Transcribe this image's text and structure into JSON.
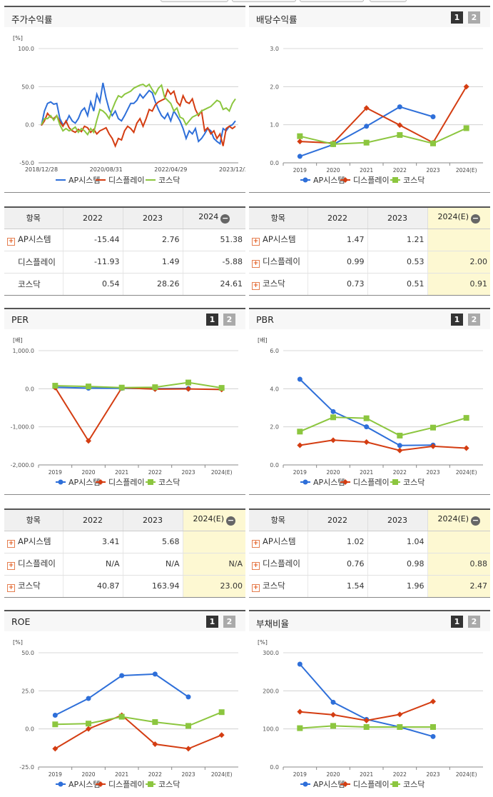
{
  "colors": {
    "ap": "#2e6fd9",
    "display": "#d43d12",
    "kosdaq": "#8cc63f"
  },
  "series_names": [
    "AP시스템",
    "디스플레이",
    "코스닥"
  ],
  "panels": {
    "stock_return": {
      "title": "주가수익률"
    },
    "dividend_yield": {
      "title": "배당수익률",
      "pages": [
        "1",
        "2"
      ]
    },
    "per": {
      "title": "PER",
      "pages": [
        "1",
        "2"
      ]
    },
    "pbr": {
      "title": "PBR",
      "pages": [
        "1",
        "2"
      ]
    },
    "roe": {
      "title": "ROE",
      "pages": [
        "1",
        "2"
      ]
    },
    "debt_ratio": {
      "title": "부채비율",
      "pages": [
        "1",
        "2"
      ]
    }
  },
  "tables": {
    "stock_return": {
      "headers": [
        "항목",
        "2022",
        "2023",
        "2024"
      ],
      "rows": [
        {
          "name": "AP시스템",
          "plus": true,
          "values": [
            "-15.44",
            "2.76",
            "51.38"
          ]
        },
        {
          "name": "디스플레이",
          "plus": false,
          "values": [
            "-11.93",
            "1.49",
            "-5.88"
          ]
        },
        {
          "name": "코스닥",
          "plus": false,
          "values": [
            "0.54",
            "28.26",
            "24.61"
          ]
        }
      ]
    },
    "dividend_yield": {
      "headers": [
        "항목",
        "2022",
        "2023",
        "2024(E)"
      ],
      "rows": [
        {
          "name": "AP시스템",
          "plus": true,
          "values": [
            "1.47",
            "1.21",
            ""
          ]
        },
        {
          "name": "디스플레이",
          "plus": true,
          "values": [
            "0.99",
            "0.53",
            "2.00"
          ]
        },
        {
          "name": "코스닥",
          "plus": true,
          "values": [
            "0.73",
            "0.51",
            "0.91"
          ]
        }
      ]
    },
    "per": {
      "headers": [
        "항목",
        "2022",
        "2023",
        "2024(E)"
      ],
      "rows": [
        {
          "name": "AP시스템",
          "plus": true,
          "values": [
            "3.41",
            "5.68",
            ""
          ]
        },
        {
          "name": "디스플레이",
          "plus": true,
          "values": [
            "N/A",
            "N/A",
            "N/A"
          ]
        },
        {
          "name": "코스닥",
          "plus": true,
          "values": [
            "40.87",
            "163.94",
            "23.00"
          ]
        }
      ]
    },
    "pbr": {
      "headers": [
        "항목",
        "2022",
        "2023",
        "2024(E)"
      ],
      "rows": [
        {
          "name": "AP시스템",
          "plus": true,
          "values": [
            "1.02",
            "1.04",
            ""
          ]
        },
        {
          "name": "디스플레이",
          "plus": true,
          "values": [
            "0.76",
            "0.98",
            "0.88"
          ]
        },
        {
          "name": "코스닥",
          "plus": true,
          "values": [
            "1.54",
            "1.96",
            "2.47"
          ]
        }
      ]
    }
  },
  "chart_data": [
    {
      "id": "stock_return",
      "type": "line",
      "unit": "[%]",
      "ylim": [
        -50,
        100
      ],
      "yticks": [
        "100.0",
        "50.0",
        "0.0",
        "-50.0"
      ],
      "xticks": [
        "2018/12/28",
        "2020/08/31",
        "2022/04/29",
        "2023/12/28"
      ],
      "series": [
        {
          "name": "AP시스템",
          "values": [
            -1,
            18,
            28,
            30,
            27,
            28,
            8,
            0,
            3,
            12,
            5,
            2,
            8,
            18,
            22,
            12,
            30,
            18,
            40,
            30,
            55,
            35,
            20,
            12,
            18,
            8,
            5,
            12,
            20,
            28,
            28,
            32,
            40,
            35,
            40,
            45,
            42,
            30,
            20,
            12,
            8,
            15,
            5,
            18,
            12,
            5,
            -5,
            -18,
            -8,
            -12,
            -5,
            -22,
            -18,
            -12,
            -5,
            -8,
            -18,
            -22,
            -25,
            -5,
            -8,
            -2,
            0,
            5
          ]
        },
        {
          "name": "디스플레이",
          "values": [
            -1,
            5,
            15,
            10,
            8,
            12,
            4,
            -2,
            5,
            -4,
            -8,
            -10,
            -6,
            -9,
            -2,
            -4,
            -10,
            -6,
            -12,
            -8,
            -6,
            -4,
            -12,
            -18,
            -28,
            -18,
            -20,
            -8,
            -2,
            -5,
            -10,
            2,
            8,
            -2,
            8,
            20,
            18,
            26,
            30,
            32,
            34,
            46,
            40,
            44,
            30,
            25,
            38,
            30,
            28,
            34,
            20,
            12,
            18,
            -8,
            -4,
            -12,
            -8,
            -18,
            -12,
            -28,
            -5,
            -2,
            -5,
            -2
          ]
        },
        {
          "name": "코스닥",
          "values": [
            0,
            8,
            8,
            12,
            6,
            12,
            0,
            -8,
            -5,
            -8,
            -6,
            -3,
            -10,
            -5,
            -8,
            -13,
            -5,
            -10,
            6,
            20,
            18,
            14,
            8,
            20,
            30,
            38,
            36,
            40,
            42,
            44,
            48,
            50,
            52,
            53,
            50,
            53,
            46,
            40,
            48,
            52,
            36,
            32,
            28,
            18,
            22,
            10,
            8,
            0,
            5,
            10,
            12,
            14,
            18,
            20,
            22,
            24,
            28,
            32,
            30,
            20,
            22,
            18,
            28,
            34
          ]
        }
      ]
    },
    {
      "id": "dividend_yield",
      "type": "line",
      "unit": "",
      "ylim": [
        0,
        3
      ],
      "yticks": [
        "3.0",
        "2.0",
        "1.0",
        "0.0"
      ],
      "categories": [
        "2019",
        "2020",
        "2021",
        "2022",
        "2023",
        "2024(E)"
      ],
      "series": [
        {
          "name": "AP시스템",
          "values": [
            0.17,
            0.48,
            0.96,
            1.47,
            1.21,
            null
          ]
        },
        {
          "name": "디스플레이",
          "values": [
            0.56,
            0.52,
            1.44,
            0.99,
            0.53,
            2.0
          ]
        },
        {
          "name": "코스닥",
          "values": [
            0.7,
            0.49,
            0.53,
            0.73,
            0.51,
            0.91
          ]
        }
      ]
    },
    {
      "id": "per",
      "type": "line",
      "unit": "[배]",
      "ylim": [
        -2000,
        1000
      ],
      "yticks": [
        "1,000.0",
        "0.0",
        "-1,000.0",
        "-2,000.0"
      ],
      "categories": [
        "2019",
        "2020",
        "2021",
        "2022",
        "2023",
        "2024(E)"
      ],
      "series": [
        {
          "name": "AP시스템",
          "values": [
            40,
            15,
            10,
            3.41,
            5.68,
            null
          ]
        },
        {
          "name": "디스플레이",
          "values": [
            30,
            -1370,
            25,
            -10,
            -5,
            -20
          ]
        },
        {
          "name": "코스닥",
          "values": [
            80,
            60,
            30,
            40.87,
            163.94,
            23
          ]
        }
      ]
    },
    {
      "id": "pbr",
      "type": "line",
      "unit": "[배]",
      "ylim": [
        0,
        6
      ],
      "yticks": [
        "6.0",
        "4.0",
        "2.0",
        "0.0"
      ],
      "categories": [
        "2019",
        "2020",
        "2021",
        "2022",
        "2023",
        "2024(E)"
      ],
      "series": [
        {
          "name": "AP시스템",
          "values": [
            4.5,
            2.8,
            2.0,
            1.02,
            1.04,
            null
          ]
        },
        {
          "name": "디스플레이",
          "values": [
            1.03,
            1.3,
            1.2,
            0.76,
            0.98,
            0.88
          ]
        },
        {
          "name": "코스닥",
          "values": [
            1.75,
            2.5,
            2.45,
            1.54,
            1.96,
            2.47
          ]
        }
      ]
    },
    {
      "id": "roe",
      "type": "line",
      "unit": "[%]",
      "ylim": [
        -25,
        50
      ],
      "yticks": [
        "50.0",
        "25.0",
        "0.0",
        "-25.0"
      ],
      "categories": [
        "2019",
        "2020",
        "2021",
        "2022",
        "2023",
        "2024(E)"
      ],
      "series": [
        {
          "name": "AP시스템",
          "values": [
            9,
            20,
            35,
            36,
            21,
            null
          ]
        },
        {
          "name": "디스플레이",
          "values": [
            -13,
            0,
            9,
            -10,
            -13,
            -4
          ]
        },
        {
          "name": "코스닥",
          "values": [
            3,
            3.5,
            8,
            4.5,
            2,
            11
          ]
        }
      ]
    },
    {
      "id": "debt_ratio",
      "type": "line",
      "unit": "[%]",
      "ylim": [
        0,
        300
      ],
      "yticks": [
        "300.0",
        "200.0",
        "100.0",
        "0.0"
      ],
      "categories": [
        "2019",
        "2020",
        "2021",
        "2022",
        "2023",
        "2024(E)"
      ],
      "series": [
        {
          "name": "AP시스템",
          "values": [
            270,
            170,
            125,
            105,
            80,
            null
          ]
        },
        {
          "name": "디스플레이",
          "values": [
            145,
            137,
            122,
            138,
            172,
            null
          ]
        },
        {
          "name": "코스닥",
          "values": [
            102,
            108,
            105,
            105,
            105,
            null
          ]
        }
      ]
    }
  ]
}
